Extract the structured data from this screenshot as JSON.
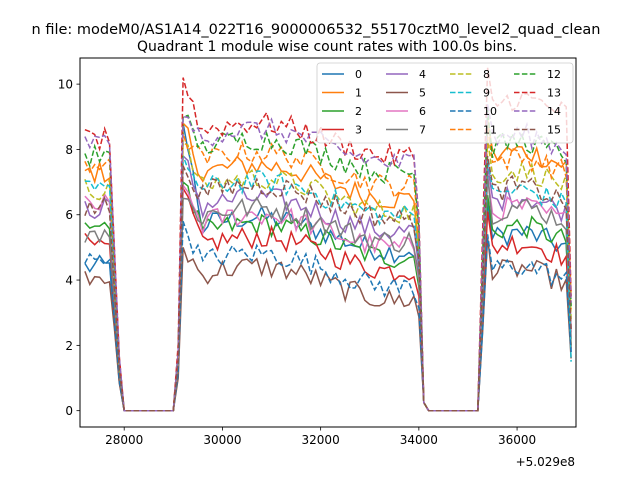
{
  "chart_data": {
    "type": "line",
    "title": "n file: modeM0/AS1A14_022T16_9000006532_55170cztM0_level2_quad_clean",
    "subtitle": "Quadrant 1 module wise count rates with 100.0s bins.",
    "xlabel": "",
    "ylabel": "",
    "x_offset_label": "+5.029e8",
    "x_offset": 502900000,
    "xlim": [
      27100,
      37200
    ],
    "ylim": [
      -0.5,
      10.8
    ],
    "x_ticks": [
      28000,
      30000,
      32000,
      34000,
      36000
    ],
    "x_tick_labels": [
      "28000",
      "30000",
      "32000",
      "34000",
      "36000"
    ],
    "y_ticks": [
      0,
      2,
      4,
      6,
      8,
      10
    ],
    "y_tick_labels": [
      "0",
      "2",
      "4",
      "6",
      "8",
      "10"
    ],
    "grid": false,
    "legend_position": "top-right",
    "legend_columns": 4,
    "x_start": 27200,
    "x_step": 100,
    "segments": [
      {
        "from": 27200,
        "to": 27900,
        "level": "on"
      },
      {
        "from": 28000,
        "to": 29000,
        "level": "zero"
      },
      {
        "from": 29100,
        "to": 29100,
        "level": "ramp"
      },
      {
        "from": 29200,
        "to": 33900,
        "level": "on"
      },
      {
        "from": 34000,
        "to": 34100,
        "level": "fall"
      },
      {
        "from": 34200,
        "to": 35200,
        "level": "zero"
      },
      {
        "from": 35300,
        "to": 35300,
        "level": "ramp"
      },
      {
        "from": 35400,
        "to": 37000,
        "level": "on"
      },
      {
        "from": 37100,
        "to": 37100,
        "level": "end"
      }
    ],
    "series": [
      {
        "name": "0",
        "color": "#1f77b4",
        "dash": "solid",
        "levels": {
          "start": 4.4,
          "peak": 8.8,
          "mid": 5.6,
          "late": 5.2,
          "end": 1.8
        }
      },
      {
        "name": "1",
        "color": "#ff7f0e",
        "dash": "solid",
        "levels": {
          "start": 7.3,
          "peak": 8.8,
          "mid": 7.2,
          "late": 7.7,
          "end": 3.5
        }
      },
      {
        "name": "2",
        "color": "#2ca02c",
        "dash": "solid",
        "levels": {
          "start": 5.7,
          "peak": 7.0,
          "mid": 5.4,
          "late": 5.4,
          "end": 2.0
        }
      },
      {
        "name": "3",
        "color": "#d62728",
        "dash": "solid",
        "levels": {
          "start": 5.1,
          "peak": 6.8,
          "mid": 5.0,
          "late": 4.9,
          "end": 1.9
        }
      },
      {
        "name": "4",
        "color": "#9467bd",
        "dash": "solid",
        "levels": {
          "start": 6.2,
          "peak": 7.8,
          "mid": 6.2,
          "late": 6.3,
          "end": 2.5
        }
      },
      {
        "name": "5",
        "color": "#8c564b",
        "dash": "solid",
        "levels": {
          "start": 4.2,
          "peak": 5.0,
          "mid": 4.1,
          "late": 4.1,
          "end": 1.6
        }
      },
      {
        "name": "6",
        "color": "#e377c2",
        "dash": "solid",
        "levels": {
          "start": 6.3,
          "peak": 6.9,
          "mid": 5.7,
          "late": 6.0,
          "end": 2.4
        }
      },
      {
        "name": "7",
        "color": "#7f7f7f",
        "dash": "solid",
        "levels": {
          "start": 5.5,
          "peak": 6.5,
          "mid": 5.9,
          "late": 6.0,
          "end": 2.2
        }
      },
      {
        "name": "8",
        "color": "#bcbd22",
        "dash": "dashed",
        "levels": {
          "start": 6.8,
          "peak": 8.2,
          "mid": 6.8,
          "late": 7.1,
          "end": 2.8
        }
      },
      {
        "name": "9",
        "color": "#17becf",
        "dash": "dashed",
        "levels": {
          "start": 6.7,
          "peak": 7.8,
          "mid": 6.7,
          "late": 6.5,
          "end": 1.5
        }
      },
      {
        "name": "10",
        "color": "#1f77b4",
        "dash": "dashed",
        "levels": {
          "start": 4.6,
          "peak": 5.8,
          "mid": 4.5,
          "late": 4.2,
          "end": 1.8
        }
      },
      {
        "name": "11",
        "color": "#ff7f0e",
        "dash": "dashed",
        "levels": {
          "start": 7.6,
          "peak": 8.5,
          "mid": 7.6,
          "late": 7.5,
          "end": 3.1
        }
      },
      {
        "name": "12",
        "color": "#2ca02c",
        "dash": "dashed",
        "levels": {
          "start": 7.8,
          "peak": 9.0,
          "mid": 8.0,
          "late": 8.0,
          "end": 3.2
        }
      },
      {
        "name": "13",
        "color": "#d62728",
        "dash": "dashed",
        "levels": {
          "start": 8.3,
          "peak": 10.2,
          "mid": 8.5,
          "late": 9.3,
          "end": 3.5
        }
      },
      {
        "name": "14",
        "color": "#9467bd",
        "dash": "dashed",
        "levels": {
          "start": 8.2,
          "peak": 9.0,
          "mid": 8.3,
          "late": 8.2,
          "end": 3.3
        }
      },
      {
        "name": "15",
        "color": "#8c564b",
        "dash": "dashed",
        "levels": {
          "start": 6.2,
          "peak": 7.5,
          "mid": 6.6,
          "late": 6.6,
          "end": 2.5
        }
      }
    ]
  }
}
